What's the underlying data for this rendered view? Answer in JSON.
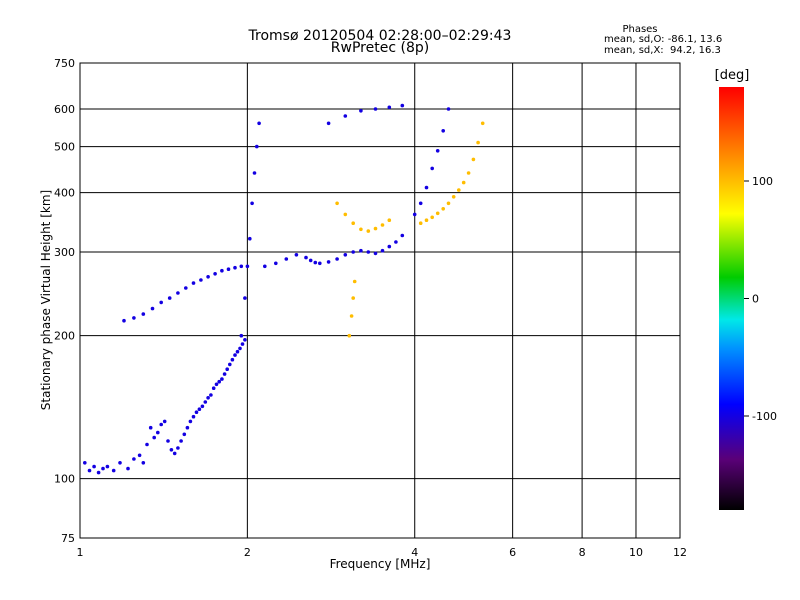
{
  "title": {
    "line1": "Tromsø 20120504 02:28:00–02:29:43",
    "line2": "RwPretec (8p)"
  },
  "phases": {
    "title": "Phases",
    "o_line": "mean, sd,O: -86.1, 13.6",
    "x_line": "mean, sd,X:  94.2, 16.3"
  },
  "colorbar": {
    "label": "[deg]",
    "range": [
      -180,
      180
    ],
    "ticks": [
      100,
      0,
      -100
    ]
  },
  "chart_data": {
    "type": "scatter",
    "xlabel": "Frequency [MHz]",
    "ylabel": "Stationary phase Virtual Height [km]",
    "xscale": "log",
    "yscale": "log",
    "xlim": [
      1,
      12
    ],
    "ylim": [
      75,
      750
    ],
    "xticks": [
      1,
      2,
      4,
      6,
      8,
      10,
      12
    ],
    "yticks": [
      75,
      100,
      200,
      300,
      400,
      500,
      600,
      750
    ],
    "grid": true,
    "series": [
      {
        "phase": -100,
        "x": [
          1.02,
          1.04,
          1.06,
          1.08,
          1.1,
          1.12,
          1.15,
          1.18,
          1.22,
          1.25,
          1.28,
          1.3,
          1.32,
          1.34,
          1.36,
          1.38,
          1.4,
          1.42,
          1.44,
          1.46,
          1.48,
          1.5,
          1.52,
          1.54,
          1.56,
          1.58,
          1.6,
          1.62,
          1.64,
          1.66,
          1.68,
          1.7,
          1.72,
          1.74,
          1.76,
          1.78,
          1.8,
          1.82,
          1.84,
          1.86,
          1.88,
          1.9,
          1.92,
          1.94,
          1.96,
          1.98
        ],
        "y": [
          108,
          104,
          106,
          103,
          105,
          106,
          104,
          108,
          105,
          110,
          112,
          108,
          118,
          128,
          122,
          125,
          130,
          132,
          120,
          115,
          113,
          116,
          120,
          124,
          128,
          132,
          135,
          138,
          140,
          142,
          145,
          148,
          150,
          155,
          158,
          160,
          162,
          166,
          170,
          174,
          178,
          182,
          185,
          188,
          192,
          196
        ]
      },
      {
        "phase": -100,
        "x": [
          1.2,
          1.25,
          1.3,
          1.35,
          1.4,
          1.45,
          1.5,
          1.55,
          1.6,
          1.65,
          1.7,
          1.75,
          1.8,
          1.85,
          1.9,
          1.95
        ],
        "y": [
          215,
          218,
          222,
          228,
          235,
          240,
          246,
          252,
          258,
          262,
          266,
          270,
          274,
          276,
          278,
          280
        ]
      },
      {
        "phase": -100,
        "x": [
          1.95,
          1.98,
          2.0,
          2.02,
          2.04,
          2.06,
          2.08,
          2.1
        ],
        "y": [
          200,
          240,
          280,
          320,
          380,
          440,
          500,
          560
        ]
      },
      {
        "phase": -100,
        "x": [
          2.15,
          2.25,
          2.35,
          2.45,
          2.55,
          2.6,
          2.65,
          2.7,
          2.8,
          2.9,
          3.0,
          3.1,
          3.2,
          3.3,
          3.4,
          3.5,
          3.6,
          3.7,
          3.8
        ],
        "y": [
          280,
          284,
          290,
          296,
          292,
          288,
          285,
          284,
          286,
          290,
          296,
          300,
          302,
          300,
          298,
          302,
          308,
          315,
          325
        ]
      },
      {
        "phase": -100,
        "x": [
          2.8,
          3.0,
          3.2,
          3.4,
          3.6,
          3.8
        ],
        "y": [
          560,
          580,
          595,
          600,
          605,
          610
        ]
      },
      {
        "phase": -100,
        "x": [
          4.0,
          4.1,
          4.2,
          4.3,
          4.4,
          4.5,
          4.6
        ],
        "y": [
          360,
          380,
          410,
          450,
          490,
          540,
          600
        ]
      },
      {
        "phase": 100,
        "x": [
          2.9,
          3.0,
          3.1,
          3.2,
          3.3,
          3.4,
          3.5,
          3.6
        ],
        "y": [
          380,
          360,
          345,
          335,
          332,
          336,
          342,
          350
        ]
      },
      {
        "phase": 100,
        "x": [
          4.1,
          4.2,
          4.3,
          4.4,
          4.5,
          4.6,
          4.7,
          4.8,
          4.9,
          5.0,
          5.1,
          5.2,
          5.3
        ],
        "y": [
          345,
          350,
          355,
          362,
          370,
          380,
          392,
          405,
          420,
          440,
          470,
          510,
          560
        ]
      },
      {
        "phase": 100,
        "x": [
          3.05,
          3.08,
          3.1,
          3.12
        ],
        "y": [
          200,
          220,
          240,
          260
        ]
      }
    ]
  }
}
